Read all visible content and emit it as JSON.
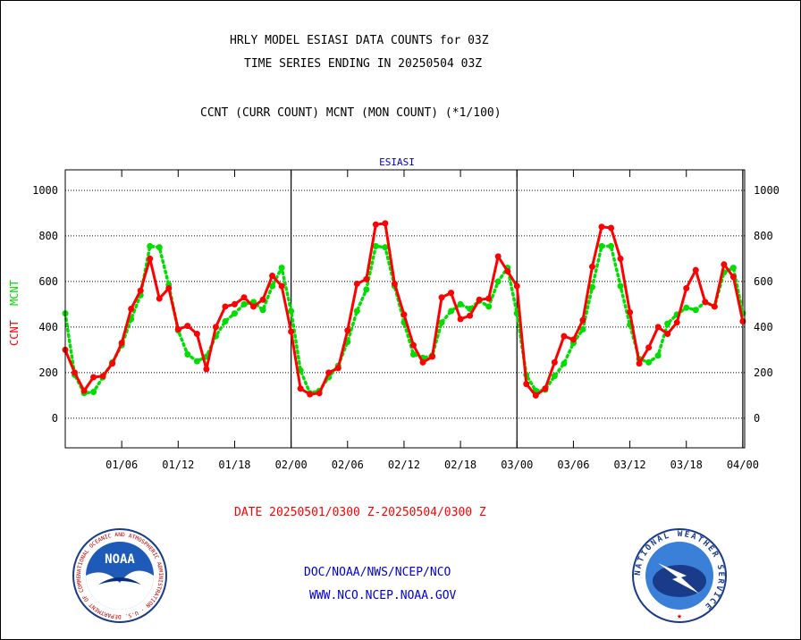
{
  "header": {
    "title_line1": "HRLY MODEL ESIASI DATA COUNTS for 03Z",
    "title_line2": "TIME SERIES ENDING IN 20250504 03Z",
    "subtitle": "CCNT (CURR COUNT) MCNT (MON COUNT) (*1/100)"
  },
  "footer": {
    "date_range": "DATE 20250501/0300 Z-20250504/0300 Z",
    "org_path": "DOC/NOAA/NWS/NCEP/NCO",
    "website": "WWW.NCO.NCEP.NOAA.GOV"
  },
  "logos": {
    "noaa_text": "NOAA",
    "noaa_ring": "NATIONAL OCEANIC AND ATMOSPHERIC ADMINISTRATION · U.S. DEPARTMENT OF COMMERCE",
    "nws_ring": "NATIONAL WEATHER SERVICE"
  },
  "colors": {
    "ccnt": "#ff0000",
    "mcnt": "#00dd00",
    "title": "#000000",
    "date": "#ff0000",
    "links": "#0000cc",
    "plot_label": "#0000cc"
  },
  "chart_data": {
    "type": "line",
    "title": "ESIASI",
    "ylabel_left": [
      "CCNT",
      "MCNT"
    ],
    "ylim": [
      -130,
      1090
    ],
    "yticks": [
      0,
      200,
      400,
      600,
      800,
      1000
    ],
    "right_axis_ticks": [
      0,
      200,
      400,
      600,
      800,
      1000
    ],
    "grid": true,
    "x_tick_labels": [
      "01/06",
      "01/12",
      "01/18",
      "02/00",
      "02/06",
      "02/12",
      "02/18",
      "03/00",
      "03/06",
      "03/12",
      "03/18",
      "04/00"
    ],
    "x_tick_hours": [
      3,
      9,
      15,
      21,
      27,
      33,
      39,
      45,
      51,
      57,
      63,
      69
    ],
    "day_boundaries_hours": [
      21,
      45,
      69
    ],
    "xlim_hours": [
      -3,
      69.2
    ],
    "x_hours_per_point": 1,
    "x_start_hour": -3,
    "series": [
      {
        "name": "CCNT",
        "values": [
          300,
          200,
          120,
          180,
          185,
          240,
          330,
          480,
          560,
          700,
          525,
          570,
          390,
          405,
          370,
          215,
          400,
          490,
          500,
          530,
          490,
          520,
          625,
          580,
          380,
          130,
          105,
          110,
          200,
          220,
          385,
          590,
          610,
          850,
          855,
          590,
          455,
          320,
          245,
          270,
          530,
          550,
          435,
          450,
          520,
          525,
          710,
          645,
          580,
          150,
          100,
          130,
          245,
          360,
          345,
          430,
          665,
          840,
          835,
          700,
          465,
          240,
          310,
          400,
          370,
          420,
          570,
          650,
          510,
          490,
          675,
          620,
          425
        ],
        "color": "#ff0000",
        "style": "solid"
      },
      {
        "name": "MCNT",
        "values": [
          460,
          190,
          110,
          115,
          180,
          245,
          320,
          435,
          540,
          755,
          750,
          585,
          385,
          280,
          250,
          270,
          360,
          425,
          460,
          500,
          510,
          475,
          580,
          660,
          470,
          210,
          110,
          120,
          180,
          230,
          335,
          470,
          565,
          755,
          750,
          580,
          420,
          280,
          265,
          275,
          420,
          470,
          500,
          480,
          515,
          490,
          600,
          660,
          460,
          190,
          120,
          125,
          185,
          240,
          330,
          390,
          575,
          755,
          755,
          580,
          410,
          260,
          245,
          275,
          415,
          455,
          485,
          475,
          510,
          490,
          640,
          660,
          460
        ],
        "color": "#00dd00",
        "style": "dotted"
      }
    ]
  }
}
